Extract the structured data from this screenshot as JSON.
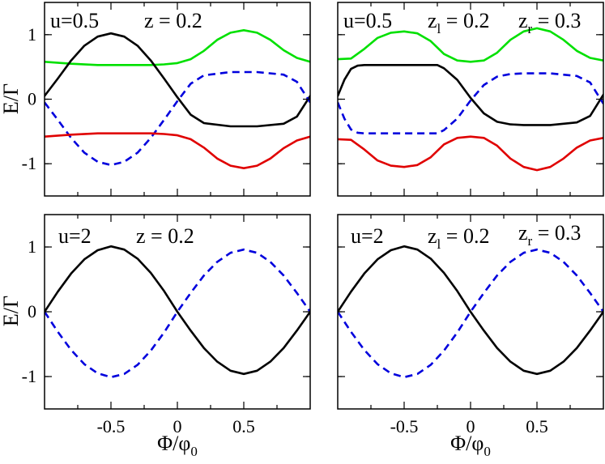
{
  "chart_data": [
    {
      "type": "line",
      "panel": "top-left",
      "annotations": [
        "u=0.5",
        "z = 0.2"
      ],
      "xlim": [
        -1,
        1
      ],
      "ylim": [
        -1.5,
        1.5
      ],
      "xticks": [],
      "yticks": [
        1,
        0,
        -1
      ],
      "ytick_labels": [
        "1",
        "0",
        "-1"
      ],
      "xlabel": "",
      "ylabel": "E/Γ",
      "series": [
        {
          "color": "#00e000",
          "dash": "solid",
          "x": [
            -1,
            -0.8,
            -0.6,
            -0.4,
            -0.2,
            -0.1,
            0,
            0.1,
            0.2,
            0.3,
            0.4,
            0.5,
            0.6,
            0.7,
            0.8,
            0.9,
            1
          ],
          "y": [
            0.58,
            0.55,
            0.53,
            0.53,
            0.53,
            0.54,
            0.56,
            0.62,
            0.75,
            0.92,
            1.03,
            1.07,
            1.03,
            0.92,
            0.76,
            0.64,
            0.58
          ]
        },
        {
          "color": "#000000",
          "dash": "solid",
          "x": [
            -1,
            -0.9,
            -0.8,
            -0.7,
            -0.6,
            -0.5,
            -0.4,
            -0.3,
            -0.2,
            -0.1,
            0,
            0.1,
            0.2,
            0.4,
            0.6,
            0.8,
            0.9,
            1
          ],
          "y": [
            0.05,
            0.32,
            0.6,
            0.83,
            0.97,
            1.02,
            0.97,
            0.83,
            0.6,
            0.32,
            0.03,
            -0.24,
            -0.37,
            -0.42,
            -0.42,
            -0.38,
            -0.27,
            0.05
          ]
        },
        {
          "color": "#0000dd",
          "dash": "dashed",
          "x": [
            -1,
            -0.9,
            -0.8,
            -0.7,
            -0.6,
            -0.5,
            -0.4,
            -0.3,
            -0.2,
            -0.1,
            0,
            0.1,
            0.2,
            0.4,
            0.6,
            0.8,
            0.9,
            1
          ],
          "y": [
            -0.05,
            -0.32,
            -0.6,
            -0.83,
            -0.97,
            -1.02,
            -0.97,
            -0.83,
            -0.6,
            -0.32,
            -0.03,
            0.24,
            0.37,
            0.42,
            0.42,
            0.38,
            0.27,
            -0.05
          ]
        },
        {
          "color": "#e00000",
          "dash": "solid",
          "x": [
            -1,
            -0.8,
            -0.6,
            -0.4,
            -0.2,
            -0.1,
            0,
            0.1,
            0.2,
            0.3,
            0.4,
            0.5,
            0.6,
            0.7,
            0.8,
            0.9,
            1
          ],
          "y": [
            -0.58,
            -0.55,
            -0.53,
            -0.53,
            -0.53,
            -0.54,
            -0.56,
            -0.62,
            -0.75,
            -0.92,
            -1.03,
            -1.07,
            -1.03,
            -0.92,
            -0.76,
            -0.64,
            -0.58
          ]
        }
      ]
    },
    {
      "type": "line",
      "panel": "top-right",
      "annotations": [
        "u=0.5",
        "z_l = 0.2",
        "z_r = 0.3"
      ],
      "xlim": [
        -1,
        1
      ],
      "ylim": [
        -1.5,
        1.5
      ],
      "xticks": [],
      "yticks": [
        1,
        0,
        -1
      ],
      "ytick_labels": [],
      "xlabel": "",
      "ylabel": "",
      "series": [
        {
          "color": "#00e000",
          "dash": "solid",
          "x": [
            -1,
            -0.9,
            -0.8,
            -0.7,
            -0.6,
            -0.5,
            -0.4,
            -0.3,
            -0.2,
            -0.1,
            0,
            0.1,
            0.2,
            0.3,
            0.4,
            0.5,
            0.6,
            0.7,
            0.8,
            0.9,
            1
          ],
          "y": [
            0.62,
            0.63,
            0.78,
            0.95,
            1.03,
            1.05,
            1.02,
            0.9,
            0.7,
            0.6,
            0.58,
            0.6,
            0.72,
            0.92,
            1.05,
            1.1,
            1.05,
            0.92,
            0.75,
            0.64,
            0.6
          ]
        },
        {
          "color": "#000000",
          "dash": "solid",
          "x": [
            -1,
            -0.95,
            -0.9,
            -0.85,
            -0.8,
            -0.6,
            -0.4,
            -0.25,
            -0.2,
            -0.1,
            0,
            0.1,
            0.2,
            0.3,
            0.4,
            0.6,
            0.8,
            0.9,
            1
          ],
          "y": [
            0.05,
            0.3,
            0.47,
            0.52,
            0.53,
            0.53,
            0.53,
            0.53,
            0.48,
            0.3,
            0.02,
            -0.22,
            -0.35,
            -0.39,
            -0.4,
            -0.4,
            -0.36,
            -0.26,
            0.07
          ]
        },
        {
          "color": "#0000dd",
          "dash": "dashed",
          "x": [
            -1,
            -0.95,
            -0.9,
            -0.85,
            -0.8,
            -0.6,
            -0.4,
            -0.25,
            -0.2,
            -0.1,
            0,
            0.1,
            0.2,
            0.3,
            0.4,
            0.6,
            0.8,
            0.9,
            1
          ],
          "y": [
            -0.05,
            -0.3,
            -0.47,
            -0.52,
            -0.53,
            -0.53,
            -0.53,
            -0.53,
            -0.48,
            -0.3,
            -0.02,
            0.22,
            0.35,
            0.39,
            0.4,
            0.4,
            0.36,
            0.26,
            -0.07
          ]
        },
        {
          "color": "#e00000",
          "dash": "solid",
          "x": [
            -1,
            -0.9,
            -0.8,
            -0.7,
            -0.6,
            -0.5,
            -0.4,
            -0.3,
            -0.2,
            -0.1,
            0,
            0.1,
            0.2,
            0.3,
            0.4,
            0.5,
            0.6,
            0.7,
            0.8,
            0.9,
            1
          ],
          "y": [
            -0.62,
            -0.63,
            -0.78,
            -0.95,
            -1.03,
            -1.05,
            -1.02,
            -0.9,
            -0.7,
            -0.6,
            -0.58,
            -0.6,
            -0.72,
            -0.92,
            -1.05,
            -1.1,
            -1.05,
            -0.92,
            -0.75,
            -0.64,
            -0.6
          ]
        }
      ]
    },
    {
      "type": "line",
      "panel": "bottom-left",
      "annotations": [
        "u=2",
        "z = 0.2"
      ],
      "xlim": [
        -1,
        1
      ],
      "ylim": [
        -1.5,
        1.5
      ],
      "xticks": [
        -0.5,
        0,
        0.5
      ],
      "xtick_labels": [
        "-0.5",
        "0",
        "0.5"
      ],
      "yticks": [
        1,
        0,
        -1
      ],
      "ytick_labels": [
        "1",
        "0",
        "-1"
      ],
      "xlabel": "Φ/φ_0",
      "ylabel": "E/Γ",
      "series": [
        {
          "color": "#000000",
          "dash": "solid",
          "x": [
            -1,
            -0.9,
            -0.8,
            -0.7,
            -0.6,
            -0.5,
            -0.4,
            -0.3,
            -0.2,
            -0.1,
            0,
            0.1,
            0.2,
            0.3,
            0.4,
            0.5,
            0.6,
            0.7,
            0.8,
            0.9,
            1
          ],
          "y": [
            0,
            0.31,
            0.59,
            0.81,
            0.95,
            1.01,
            0.96,
            0.82,
            0.6,
            0.32,
            0,
            -0.29,
            -0.56,
            -0.77,
            -0.91,
            -0.96,
            -0.91,
            -0.77,
            -0.56,
            -0.29,
            0
          ]
        },
        {
          "color": "#0000dd",
          "dash": "dashed",
          "x": [
            -1,
            -0.9,
            -0.8,
            -0.7,
            -0.6,
            -0.5,
            -0.4,
            -0.3,
            -0.2,
            -0.1,
            0,
            0.1,
            0.2,
            0.3,
            0.4,
            0.5,
            0.6,
            0.7,
            0.8,
            0.9,
            1
          ],
          "y": [
            0,
            -0.31,
            -0.59,
            -0.81,
            -0.95,
            -1.01,
            -0.96,
            -0.82,
            -0.6,
            -0.32,
            0,
            0.29,
            0.56,
            0.77,
            0.91,
            0.96,
            0.91,
            0.77,
            0.56,
            0.29,
            0
          ]
        }
      ]
    },
    {
      "type": "line",
      "panel": "bottom-right",
      "annotations": [
        "u=2",
        "z_l = 0.2",
        "z_r = 0.3"
      ],
      "xlim": [
        -1,
        1
      ],
      "ylim": [
        -1.5,
        1.5
      ],
      "xticks": [
        -0.5,
        0,
        0.5
      ],
      "xtick_labels": [
        "-0.5",
        "0",
        "0.5"
      ],
      "yticks": [
        1,
        0,
        -1
      ],
      "ytick_labels": [],
      "xlabel": "Φ/φ_0",
      "ylabel": "",
      "series": [
        {
          "color": "#000000",
          "dash": "solid",
          "x": [
            -1,
            -0.9,
            -0.8,
            -0.7,
            -0.6,
            -0.5,
            -0.4,
            -0.3,
            -0.2,
            -0.1,
            0,
            0.1,
            0.2,
            0.3,
            0.4,
            0.5,
            0.6,
            0.7,
            0.8,
            0.9,
            1
          ],
          "y": [
            0,
            0.31,
            0.59,
            0.81,
            0.95,
            1.01,
            0.96,
            0.82,
            0.6,
            0.32,
            0,
            -0.29,
            -0.56,
            -0.77,
            -0.91,
            -0.96,
            -0.91,
            -0.77,
            -0.56,
            -0.29,
            0
          ]
        },
        {
          "color": "#0000dd",
          "dash": "dashed",
          "x": [
            -1,
            -0.9,
            -0.8,
            -0.7,
            -0.6,
            -0.5,
            -0.4,
            -0.3,
            -0.2,
            -0.1,
            0,
            0.1,
            0.2,
            0.3,
            0.4,
            0.5,
            0.6,
            0.7,
            0.8,
            0.9,
            1
          ],
          "y": [
            0,
            -0.31,
            -0.59,
            -0.81,
            -0.95,
            -1.01,
            -0.96,
            -0.82,
            -0.6,
            -0.32,
            0,
            0.29,
            0.56,
            0.77,
            0.91,
            0.96,
            0.91,
            0.77,
            0.56,
            0.29,
            0
          ]
        }
      ]
    }
  ]
}
